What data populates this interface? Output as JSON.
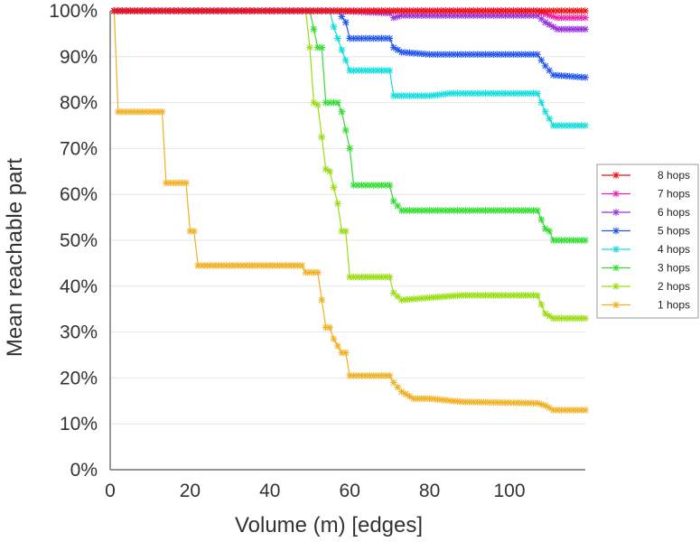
{
  "chart_data": {
    "type": "line",
    "title": "",
    "xlabel": "Volume (m) [edges]",
    "ylabel": "Mean reachable part",
    "xlim": [
      0,
      120
    ],
    "ylim": [
      0,
      100
    ],
    "x_ticks": [
      "0",
      "20",
      "40",
      "60",
      "80",
      "100"
    ],
    "x_tick_values": [
      0,
      20,
      40,
      60,
      80,
      100
    ],
    "y_ticks": [
      "0%",
      "10%",
      "20%",
      "30%",
      "40%",
      "50%",
      "60%",
      "70%",
      "80%",
      "90%",
      "100%"
    ],
    "y_tick_values": [
      0,
      10,
      20,
      30,
      40,
      50,
      60,
      70,
      80,
      90,
      100
    ],
    "grid": "horizontal",
    "legend_position": "right",
    "series": [
      {
        "name": "8 hops",
        "color": "#ee1111",
        "points": [
          [
            1,
            100
          ],
          [
            57,
            100
          ],
          [
            107,
            100
          ],
          [
            112,
            100
          ],
          [
            119,
            100
          ]
        ]
      },
      {
        "name": "7 hops",
        "color": "#ee22aa",
        "points": [
          [
            1,
            100
          ],
          [
            57,
            100
          ],
          [
            107,
            100
          ],
          [
            110,
            99
          ],
          [
            112,
            98.5
          ],
          [
            119,
            98.5
          ]
        ]
      },
      {
        "name": "6 hops",
        "color": "#9933dd",
        "points": [
          [
            1,
            100
          ],
          [
            57,
            100
          ],
          [
            70,
            99.5
          ],
          [
            71,
            98.5
          ],
          [
            73,
            99
          ],
          [
            107,
            99
          ],
          [
            109,
            97.5
          ],
          [
            111,
            96.5
          ],
          [
            112,
            96
          ],
          [
            119,
            96
          ]
        ]
      },
      {
        "name": "5 hops",
        "color": "#2255ee",
        "points": [
          [
            1,
            100
          ],
          [
            57,
            100
          ],
          [
            59,
            97.5
          ],
          [
            60,
            94
          ],
          [
            70,
            94
          ],
          [
            71,
            92
          ],
          [
            73,
            91
          ],
          [
            80,
            90.5
          ],
          [
            107,
            90.5
          ],
          [
            109,
            88
          ],
          [
            111,
            86
          ],
          [
            119,
            85.5
          ]
        ]
      },
      {
        "name": "4 hops",
        "color": "#11dddd",
        "points": [
          [
            1,
            100
          ],
          [
            50,
            100
          ],
          [
            55,
            100
          ],
          [
            56,
            96.5
          ],
          [
            58,
            91.5
          ],
          [
            60,
            87
          ],
          [
            70,
            87
          ],
          [
            71,
            81.5
          ],
          [
            80,
            81.5
          ],
          [
            85,
            82
          ],
          [
            107,
            82
          ],
          [
            109,
            78
          ],
          [
            111,
            75
          ],
          [
            119,
            75
          ]
        ]
      },
      {
        "name": "3 hops",
        "color": "#33dd33",
        "points": [
          [
            1,
            100
          ],
          [
            50,
            100
          ],
          [
            52,
            92
          ],
          [
            53,
            92
          ],
          [
            54,
            80
          ],
          [
            57,
            80
          ],
          [
            58,
            78
          ],
          [
            60,
            70
          ],
          [
            61,
            62
          ],
          [
            70,
            62
          ],
          [
            71,
            58.5
          ],
          [
            73,
            56.5
          ],
          [
            80,
            56.5
          ],
          [
            88,
            56.5
          ],
          [
            107,
            56.5
          ],
          [
            109,
            52.5
          ],
          [
            110,
            52
          ],
          [
            111,
            50
          ],
          [
            119,
            50
          ]
        ]
      },
      {
        "name": "2 hops",
        "color": "#99dd11",
        "points": [
          [
            1,
            100
          ],
          [
            49,
            100
          ],
          [
            50,
            92
          ],
          [
            51,
            80
          ],
          [
            52,
            79.5
          ],
          [
            54,
            65.5
          ],
          [
            55,
            65
          ],
          [
            57,
            58
          ],
          [
            58,
            52
          ],
          [
            59,
            52
          ],
          [
            60,
            42
          ],
          [
            70,
            42
          ],
          [
            71,
            38.5
          ],
          [
            73,
            37
          ],
          [
            80,
            37.5
          ],
          [
            88,
            38
          ],
          [
            107,
            38
          ],
          [
            109,
            34
          ],
          [
            110,
            33.5
          ],
          [
            111,
            33
          ],
          [
            119,
            33
          ]
        ]
      },
      {
        "name": "1 hops",
        "color": "#f0b020",
        "points": [
          [
            1,
            100
          ],
          [
            2,
            78
          ],
          [
            13,
            78
          ],
          [
            14,
            62.5
          ],
          [
            19,
            62.5
          ],
          [
            20,
            52
          ],
          [
            21,
            52
          ],
          [
            22,
            44.5
          ],
          [
            48,
            44.5
          ],
          [
            49,
            43
          ],
          [
            52,
            43
          ],
          [
            54,
            31
          ],
          [
            55,
            31
          ],
          [
            56,
            28.5
          ],
          [
            58,
            25.5
          ],
          [
            59,
            25.5
          ],
          [
            60,
            20.5
          ],
          [
            70,
            20.5
          ],
          [
            71,
            19
          ],
          [
            73,
            17
          ],
          [
            76,
            15.5
          ],
          [
            80,
            15.5
          ],
          [
            88,
            14.8
          ],
          [
            107,
            14.5
          ],
          [
            109,
            14
          ],
          [
            111,
            13
          ],
          [
            119,
            13
          ]
        ]
      }
    ]
  }
}
